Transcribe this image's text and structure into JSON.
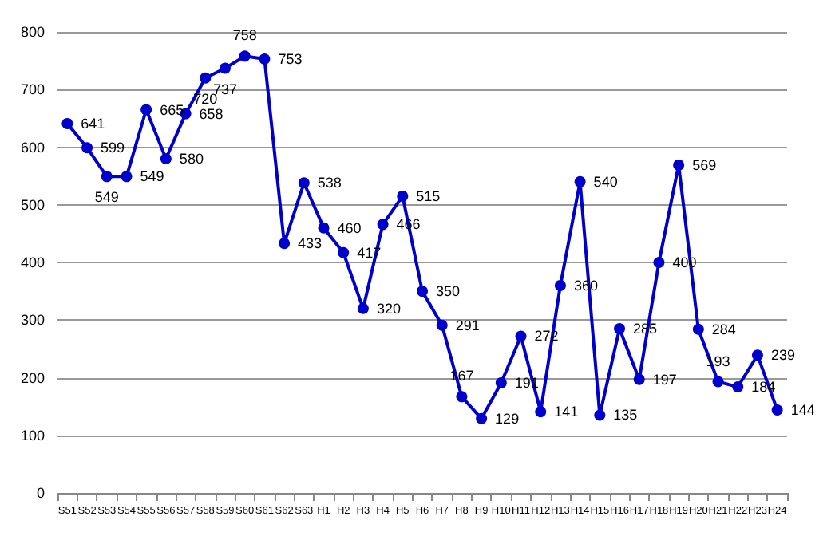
{
  "chart_data": {
    "type": "line",
    "categories": [
      "S51",
      "S52",
      "S53",
      "S54",
      "S55",
      "S56",
      "S57",
      "S58",
      "S59",
      "S60",
      "S61",
      "S62",
      "S63",
      "H1",
      "H2",
      "H3",
      "H4",
      "H5",
      "H6",
      "H7",
      "H8",
      "H9",
      "H10",
      "H11",
      "H12",
      "H13",
      "H14",
      "H15",
      "H16",
      "H17",
      "H18",
      "H19",
      "H20",
      "H21",
      "H22",
      "H23",
      "H24"
    ],
    "series": [
      {
        "color": "#0000cc",
        "values": [
          641,
          599,
          549,
          549,
          665,
          580,
          658,
          720,
          737,
          758,
          753,
          433,
          538,
          460,
          417,
          320,
          466,
          515,
          350,
          291,
          167,
          129,
          191,
          272,
          141,
          360,
          540,
          135,
          285,
          197,
          400,
          569,
          284,
          193,
          184,
          239,
          144
        ]
      }
    ],
    "ylim": [
      0,
      800
    ],
    "yticks": [
      0,
      100,
      200,
      300,
      400,
      500,
      600,
      700,
      800
    ],
    "grid": "y",
    "marker": "circle",
    "line_style": "solid",
    "data_labels": true
  }
}
